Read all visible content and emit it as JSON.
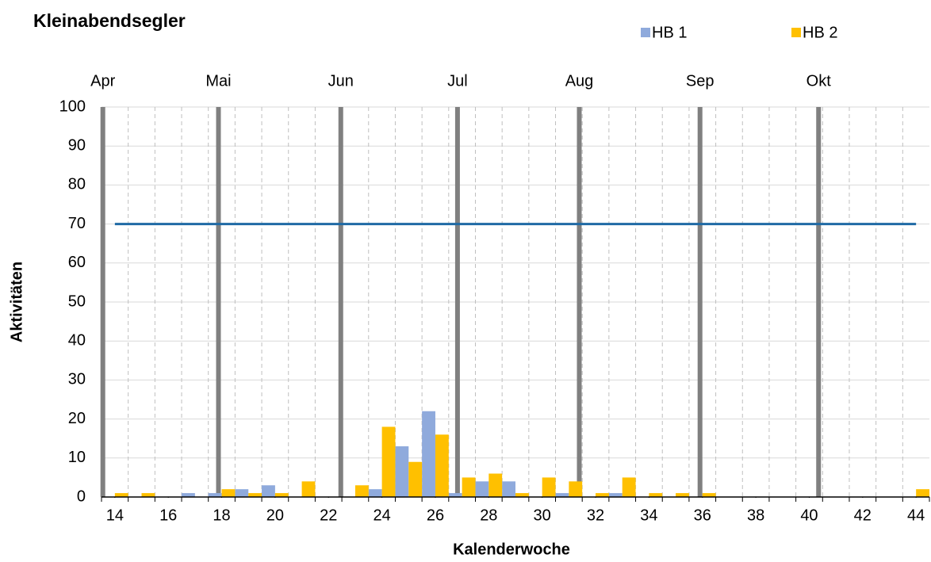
{
  "chart_data": {
    "type": "bar",
    "title": "Kleinabendsegler",
    "x_label": "Kalenderwoche",
    "y_label": "Aktivitäten",
    "x": [
      14,
      15,
      16,
      17,
      18,
      19,
      20,
      21,
      22,
      23,
      24,
      25,
      26,
      27,
      28,
      29,
      30,
      31,
      32,
      33,
      34,
      35,
      36,
      37,
      38,
      39,
      40,
      41,
      42,
      43,
      44
    ],
    "series": [
      {
        "name": "HB 1",
        "color": "#8faadc",
        "values": [
          0,
          0,
          0,
          1,
          1,
          2,
          3,
          0,
          0,
          0,
          2,
          13,
          22,
          1,
          4,
          4,
          0,
          1,
          0,
          1,
          0,
          0,
          0,
          0,
          0,
          0,
          0,
          0,
          0,
          0,
          0
        ]
      },
      {
        "name": "HB 2",
        "color": "#ffc000",
        "values": [
          1,
          1,
          0,
          0,
          2,
          1,
          1,
          4,
          0,
          3,
          18,
          9,
          16,
          5,
          6,
          1,
          5,
          4,
          1,
          5,
          1,
          1,
          1,
          0,
          0,
          0,
          0,
          0,
          0,
          0,
          2
        ]
      }
    ],
    "xlim": [
      13.5,
      44.5
    ],
    "xticks": [
      14,
      16,
      18,
      20,
      22,
      24,
      26,
      28,
      30,
      32,
      34,
      36,
      38,
      40,
      42,
      44
    ],
    "ylim": [
      0,
      100
    ],
    "yticks": [
      0,
      10,
      20,
      30,
      40,
      50,
      60,
      70,
      80,
      90,
      100
    ],
    "grid": true,
    "months": [
      {
        "label": "Apr",
        "x": 13.55
      },
      {
        "label": "Mai",
        "x": 17.88
      },
      {
        "label": "Jun",
        "x": 22.46
      },
      {
        "label": "Jul",
        "x": 26.83
      },
      {
        "label": "Aug",
        "x": 31.39
      },
      {
        "label": "Sep",
        "x": 35.91
      },
      {
        "label": "Okt",
        "x": 40.35
      }
    ],
    "reference_line": {
      "value": 70,
      "color": "#1f6aa5"
    },
    "legend": "top"
  }
}
